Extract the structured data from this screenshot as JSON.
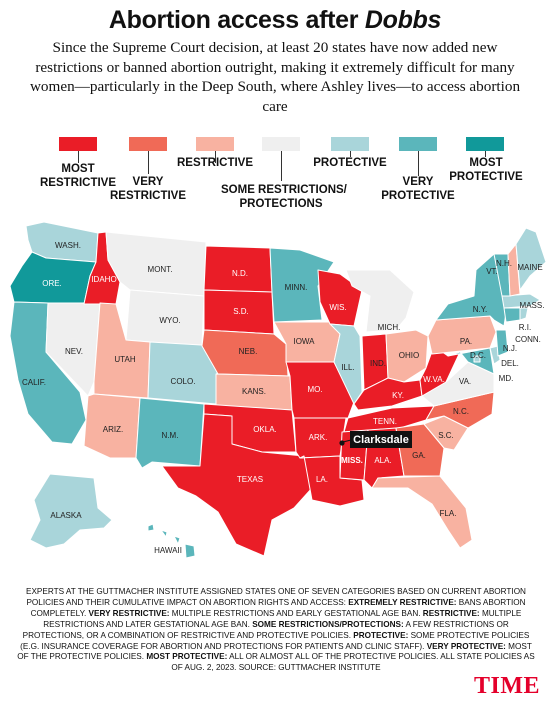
{
  "header": {
    "title_main": "Abortion access after ",
    "title_italic": "Dobbs",
    "subtitle": "Since the Supreme Court decision, at least 20 states have now added new restrictions or banned abortion outright, making it extremely difficult for many women—particularly in the Deep South, where Ashley lives—to access abortion care"
  },
  "colors": {
    "most_restrictive": "#ea1d27",
    "very_restrictive": "#f06a57",
    "restrictive": "#f8b2a1",
    "some": "#efefef",
    "protective": "#a9d5da",
    "very_protective": "#5bb6bb",
    "most_protective": "#11999a"
  },
  "legend": [
    {
      "key": "most_restrictive",
      "label1": "MOST",
      "label2": "RESTRICTIVE"
    },
    {
      "key": "very_restrictive",
      "label1": "VERY",
      "label2": "RESTRICTIVE"
    },
    {
      "key": "restrictive",
      "label1": "RESTRICTIVE",
      "label2": ""
    },
    {
      "key": "some",
      "label1": "SOME RESTRICTIONS/",
      "label2": "PROTECTIONS"
    },
    {
      "key": "protective",
      "label1": "PROTECTIVE",
      "label2": ""
    },
    {
      "key": "very_protective",
      "label1": "VERY",
      "label2": "PROTECTIVE"
    },
    {
      "key": "most_protective",
      "label1": "MOST",
      "label2": "PROTECTIVE"
    }
  ],
  "states": {
    "WASH.": "protective",
    "ORE.": "most_protective",
    "IDAHO": "most_restrictive",
    "MONT.": "some",
    "WYO.": "some",
    "N.D.": "most_restrictive",
    "S.D.": "most_restrictive",
    "NEB.": "very_restrictive",
    "KANS.": "restrictive",
    "OKLA.": "most_restrictive",
    "TEXAS": "most_restrictive",
    "MINN.": "very_protective",
    "IOWA": "restrictive",
    "MO.": "most_restrictive",
    "ARK.": "most_restrictive",
    "LA.": "most_restrictive",
    "WIS.": "most_restrictive",
    "ILL.": "protective",
    "MICH.": "some",
    "IND.": "most_restrictive",
    "OHIO": "restrictive",
    "KY.": "most_restrictive",
    "TENN.": "most_restrictive",
    "MISS.": "most_restrictive",
    "ALA.": "most_restrictive",
    "GA.": "very_restrictive",
    "FLA.": "restrictive",
    "S.C.": "restrictive",
    "N.C.": "very_restrictive",
    "VA.": "some",
    "W.VA.": "most_restrictive",
    "PA.": "restrictive",
    "N.Y.": "very_protective",
    "VT.": "very_protective",
    "N.H.": "restrictive",
    "MAINE": "protective",
    "MASS.": "protective",
    "R.I.": "protective",
    "CONN.": "very_protective",
    "N.J.": "very_protective",
    "DEL.": "protective",
    "MD.": "very_protective",
    "D.C.": "protective",
    "NEV.": "some",
    "CALIF.": "very_protective",
    "UTAH": "restrictive",
    "ARIZ.": "restrictive",
    "COLO.": "protective",
    "N.M.": "very_protective",
    "ALASKA": "protective",
    "HAWAII": "very_protective"
  },
  "callout": {
    "city": "Clarksdale"
  },
  "footnote": {
    "p1": "Experts at the Guttmacher Institute assigned states one of seven categories based on current abortion policies and their cumulative impact on abortion rights and access: ",
    "b1": "Extremely restrictive:",
    "p2": " Bans abortion completely. ",
    "b2": "Very restrictive:",
    "p3": " Multiple restrictions and early gestational age ban. ",
    "b3": "Restrictive:",
    "p4": " Multiple restrictions and later gestational age ban. ",
    "b4": "Some restrictions/protections:",
    "p5": " A few restrictions or protections, or a combination of restrictive and protective policies. ",
    "b5": "Protective:",
    "p6": " Some protective policies (e.g. insurance coverage for abortion and protections for patients and clinic staff). ",
    "b6": "Very protective:",
    "p7": " Most of the protective policies. ",
    "b7": "Most protective:",
    "p8": " All or almost all of the protective policies. All state policies as of Aug. 2, 2023. Source: Guttmacher Institute"
  },
  "brand": "TIME"
}
